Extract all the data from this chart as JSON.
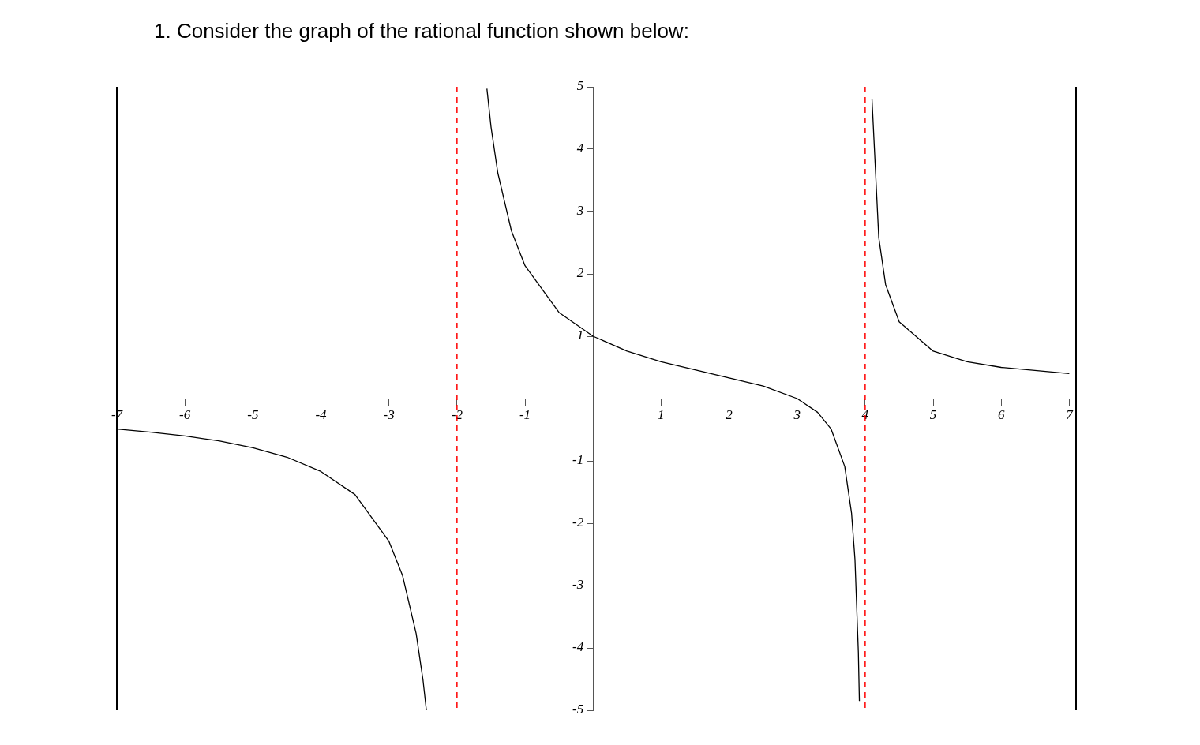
{
  "chart_data": {
    "type": "line",
    "title": "1.  Consider the graph of the rational function shown below:",
    "series": [
      {
        "color": "#000000",
        "x": [
          -7,
          -6.5,
          -6,
          -5.5,
          -5,
          -4.5,
          -4,
          -3.5,
          -3,
          -2.8,
          -2.6,
          -2.5,
          -2.45,
          -2,
          -1.56,
          -1.5,
          -1.4,
          -1.2,
          -1,
          -0.5,
          0,
          0.5,
          1,
          1.5,
          2,
          2.5,
          3,
          3.3,
          3.5,
          3.7,
          3.8,
          3.85,
          3.9,
          3.915,
          4,
          4.1,
          4.2,
          4.3,
          4.5,
          5,
          5.5,
          6,
          7
        ],
        "values": [
          -0.49,
          -0.54,
          -0.6,
          -0.68,
          -0.79,
          -0.94,
          -1.17,
          -1.54,
          -2.29,
          -2.84,
          -3.77,
          -4.51,
          -5.0,
          null,
          4.97,
          4.36,
          3.62,
          2.69,
          2.13,
          1.38,
          1,
          0.76,
          0.59,
          0.46,
          0.33,
          0.2,
          0,
          -0.22,
          -0.49,
          -1.09,
          -1.84,
          -2.58,
          -4.07,
          -4.85,
          null,
          4.81,
          2.58,
          1.83,
          1.23,
          0.76,
          0.59,
          0.5,
          0.4
        ]
      }
    ],
    "xlim": [
      -7,
      7.1
    ],
    "ylim": [
      -5,
      5
    ],
    "xticks": [
      -7,
      -6,
      -5,
      -4,
      -3,
      -2,
      -1,
      1,
      2,
      3,
      4,
      5,
      6,
      7
    ],
    "yticks": [
      -5,
      -4,
      -3,
      -2,
      -1,
      1,
      2,
      3,
      4,
      5
    ],
    "ref_lines": [
      {
        "axis": "x",
        "value": -2,
        "color": "#ff0000",
        "line_style": "dashed"
      },
      {
        "axis": "x",
        "value": 4,
        "color": "#ff0000",
        "line_style": "dashed"
      }
    ],
    "grid": false,
    "legend": false,
    "marker": "none",
    "line_style": "solid"
  }
}
